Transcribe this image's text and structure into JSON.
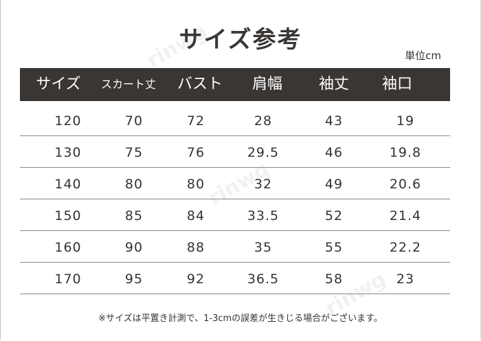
{
  "title": "サイズ参考",
  "unit": "単位cm",
  "table": {
    "headers": [
      "サイズ",
      "スカート丈",
      "バスト",
      "肩幅",
      "袖丈",
      "袖口"
    ],
    "rows": [
      [
        "120",
        "70",
        "72",
        "28",
        "43",
        "19"
      ],
      [
        "130",
        "75",
        "76",
        "29.5",
        "46",
        "19.8"
      ],
      [
        "140",
        "80",
        "80",
        "32",
        "49",
        "20.6"
      ],
      [
        "150",
        "85",
        "84",
        "33.5",
        "52",
        "21.4"
      ],
      [
        "160",
        "90",
        "88",
        "35",
        "55",
        "22.2"
      ],
      [
        "170",
        "95",
        "92",
        "36.5",
        "58",
        "23"
      ]
    ]
  },
  "note": "※サイズは平置き計測で、1-3cmの誤差が生きじる場合がございます。",
  "watermark": "rinwg",
  "colors": {
    "header_bg": "#3a3634",
    "header_text": "#ffffff",
    "text": "#333333"
  }
}
